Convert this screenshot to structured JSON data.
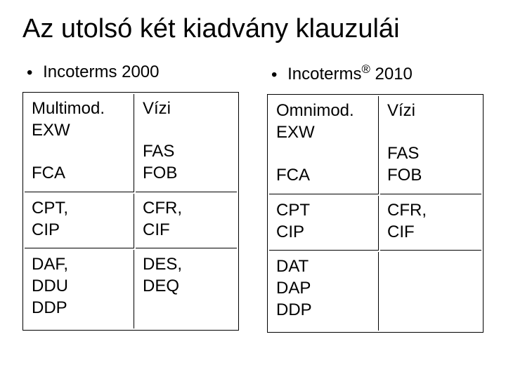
{
  "title": "Az utolsó két kiadvány klauzulái",
  "left": {
    "heading_prefix": "Incoterms ",
    "heading_year": "2000",
    "rows": [
      {
        "a": "Multimod.\nEXW\n\nFCA",
        "b": "Vízi\n\nFAS\nFOB"
      },
      {
        "a": "CPT,\nCIP",
        "b": "CFR,\nCIF"
      },
      {
        "a": "DAF,\nDDU\nDDP",
        "b": "DES,\nDEQ"
      }
    ]
  },
  "right": {
    "heading_prefix": "Incoterms",
    "heading_reg": "®",
    "heading_year": " 2010",
    "rows": [
      {
        "a": "Omnimod.\nEXW\n\nFCA",
        "b": "Vízi\n\nFAS\nFOB"
      },
      {
        "a": "CPT\nCIP",
        "b": "CFR,\nCIF"
      },
      {
        "a": "DAT\nDAP\nDDP",
        "b": ""
      }
    ]
  },
  "colors": {
    "background": "#ffffff",
    "text": "#000000",
    "border": "#000000"
  },
  "fonts": {
    "title_size_pt": 38,
    "header_size_pt": 24,
    "cell_size_pt": 24
  }
}
